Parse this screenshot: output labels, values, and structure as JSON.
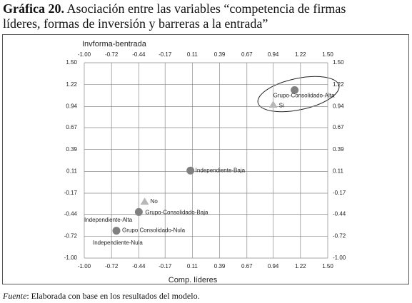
{
  "chart_data": {
    "type": "scatter",
    "title_label": "Gráfica 20.",
    "title": "Asociación entre las variables “competencia de firmas líderes, formas de inversión y barreras a la entrada”",
    "y_label": "Invforma-bentrada",
    "x_label": "Comp. líderes",
    "source_label": "Fuente",
    "source": ": Elaborada con base en los resultados del modelo.",
    "xlim": [
      -1.0,
      1.5
    ],
    "ylim": [
      -1.0,
      1.5
    ],
    "xticks": [
      {
        "value": -1.0,
        "label": "-1.00"
      },
      {
        "value": -0.72,
        "label": "-0.72"
      },
      {
        "value": -0.44,
        "label": "-0.44"
      },
      {
        "value": -0.17,
        "label": "-0.17"
      },
      {
        "value": 0.11,
        "label": "0.11"
      },
      {
        "value": 0.39,
        "label": "0.39"
      },
      {
        "value": 0.67,
        "label": "0.67"
      },
      {
        "value": 0.94,
        "label": "0.94"
      },
      {
        "value": 1.22,
        "label": "1.22"
      },
      {
        "value": 1.5,
        "label": "1.50"
      }
    ],
    "yticks": [
      {
        "value": -1.0,
        "label": "-1.00"
      },
      {
        "value": -0.72,
        "label": "-0.72"
      },
      {
        "value": -0.44,
        "label": "-0.44"
      },
      {
        "value": -0.17,
        "label": "-0.17"
      },
      {
        "value": 0.11,
        "label": "0.11"
      },
      {
        "value": 0.39,
        "label": "0.39"
      },
      {
        "value": 0.67,
        "label": "0.67"
      },
      {
        "value": 0.94,
        "label": "0.94"
      },
      {
        "value": 1.22,
        "label": "1.22"
      },
      {
        "value": 1.5,
        "label": "1.50"
      }
    ],
    "grid": true,
    "points": [
      {
        "label": "Grupo-Consolidado-Alta",
        "x": 1.16,
        "y": 1.15,
        "shape": "circle",
        "color": "#808080"
      },
      {
        "label": "Si",
        "x": 0.94,
        "y": 0.96,
        "shape": "triangle",
        "color": "#b8b8b8"
      },
      {
        "label": "Independiente-Baja",
        "x": 0.09,
        "y": 0.12,
        "shape": "circle",
        "color": "#808080"
      },
      {
        "label": "No",
        "x": -0.38,
        "y": -0.28,
        "shape": "triangle",
        "color": "#b8b8b8"
      },
      {
        "label": "Grupo-Consolidado-Baja",
        "x": -0.44,
        "y": -0.41,
        "shape": "circle",
        "color": "#808080"
      },
      {
        "label": "Grupo Consolidado-Nula",
        "x": -0.67,
        "y": -0.65,
        "shape": "circle",
        "color": "#808080"
      }
    ],
    "annotations": [
      "Independiente-Alta",
      "Independiente-Nula"
    ]
  }
}
